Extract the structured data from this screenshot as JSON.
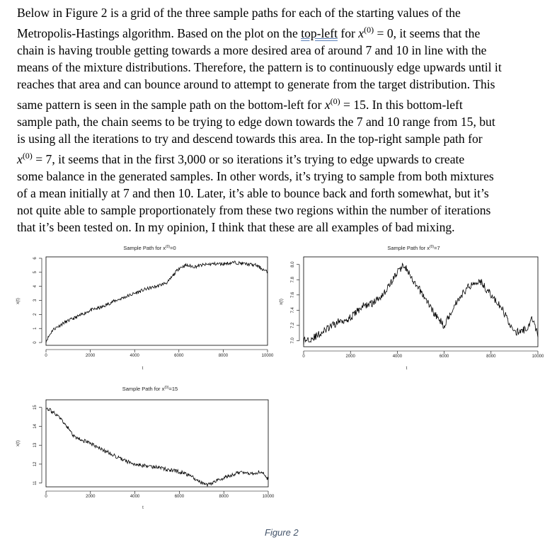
{
  "paragraph": {
    "line1": "Below in Figure 2 is a grid of the three sample paths for each of the starting values of the",
    "line2_a": "Metropolis-Hastings algorithm. Based on the plot on the ",
    "line2_link": "top-left",
    "line2_b": " for ",
    "line2_c": " = 0, it seems that the",
    "line3": "chain is having trouble getting towards a more desired area of around 7 and 10 in line with the",
    "line4": "means of the mixture distributions. Therefore, the pattern is to continuously edge upwards until it",
    "line5": "reaches that area and can bounce around to attempt to generate from the target distribution. This",
    "line6_a": "same pattern is seen in the sample path on the bottom-left for ",
    "line6_b": " = 15. In this bottom-left",
    "line7": "sample path, the chain seems to be trying to edge down towards the 7 and 10 range from 15, but",
    "line8": "is using all the iterations to try and descend towards this area. In the top-right sample path for",
    "line9_b": " = 7, it seems that in the first 3,000 or so iterations it’s trying to edge upwards to create",
    "line10": "some balance in the generated samples. In other words, it’s trying to sample from both mixtures",
    "line11": "of a mean initially at 7 and then 10. Later, it’s able to bounce back and forth somewhat, but it’s",
    "line12": "not quite able to sample proportionately from these two regions within the number of iterations",
    "line13": "that it’s been tested on. In my opinion, I think that these are all examples of bad mixing.",
    "math_x": "x",
    "math_sup": "(0)"
  },
  "caption": "Figure 2",
  "chart_data": [
    {
      "type": "line",
      "title": "Sample Path for x(0)=0",
      "xlabel": "t",
      "ylabel": "x(t)",
      "xlim": [
        0,
        10000
      ],
      "ylim": [
        -0.2,
        6.1
      ],
      "x_ticks": [
        "0",
        "2000",
        "4000",
        "6000",
        "8000",
        "10000"
      ],
      "y_ticks": [
        "0",
        "1",
        "2",
        "3",
        "4",
        "5",
        "6"
      ],
      "series": [
        {
          "x": [
            0,
            300,
            800,
            1500,
            2000,
            2500,
            3000,
            3500,
            4000,
            4500,
            5000,
            5500,
            6000,
            6300,
            6700,
            7000,
            7500,
            8000,
            8500,
            9000,
            9500,
            10000
          ],
          "values": [
            0.1,
            0.9,
            1.4,
            1.9,
            2.3,
            2.5,
            2.9,
            3.2,
            3.5,
            3.8,
            4.0,
            4.3,
            5.3,
            5.5,
            5.4,
            5.5,
            5.6,
            5.6,
            5.7,
            5.6,
            5.5,
            5.0
          ],
          "noise": 0.12
        }
      ]
    },
    {
      "type": "line",
      "title": "Sample Path for x(0)=7",
      "xlabel": "t",
      "ylabel": "x(t)",
      "xlim": [
        0,
        10000
      ],
      "ylim": [
        6.92,
        8.1
      ],
      "x_ticks": [
        "0",
        "2000",
        "4000",
        "6000",
        "8000",
        "10000"
      ],
      "y_ticks": [
        "7.0",
        "7.2",
        "7.4",
        "7.6",
        "7.8",
        "8.0"
      ],
      "series": [
        {
          "x": [
            0,
            500,
            1000,
            1500,
            2000,
            2500,
            3000,
            3500,
            4000,
            4300,
            4700,
            5000,
            5300,
            5700,
            6000,
            6500,
            7000,
            7500,
            8000,
            8500,
            9000,
            9500,
            9800,
            10000
          ],
          "values": [
            7.0,
            7.05,
            7.15,
            7.25,
            7.3,
            7.45,
            7.5,
            7.65,
            7.9,
            8.0,
            7.75,
            7.65,
            7.5,
            7.3,
            7.2,
            7.5,
            7.7,
            7.8,
            7.6,
            7.4,
            7.1,
            7.15,
            7.3,
            7.05
          ],
          "noise": 0.05
        }
      ]
    },
    {
      "type": "line",
      "title": "Sample Path for x(0)=15",
      "xlabel": "t",
      "ylabel": "x(t)",
      "xlim": [
        0,
        10000
      ],
      "ylim": [
        10.8,
        15.4
      ],
      "x_ticks": [
        "0",
        "2000",
        "4000",
        "6000",
        "8000",
        "10000"
      ],
      "y_ticks": [
        "11",
        "12",
        "13",
        "14",
        "15"
      ],
      "series": [
        {
          "x": [
            0,
            500,
            1000,
            1300,
            1800,
            2300,
            3000,
            3500,
            4000,
            4500,
            5000,
            5500,
            6000,
            6500,
            7000,
            7300,
            7800,
            8300,
            8800,
            9300,
            9700,
            10000
          ],
          "values": [
            15.0,
            14.6,
            13.9,
            13.4,
            13.2,
            12.9,
            12.5,
            12.2,
            12.0,
            11.9,
            11.85,
            11.7,
            11.6,
            11.4,
            11.0,
            10.9,
            11.2,
            11.4,
            11.6,
            11.5,
            11.6,
            11.2
          ],
          "noise": 0.1
        }
      ]
    }
  ]
}
